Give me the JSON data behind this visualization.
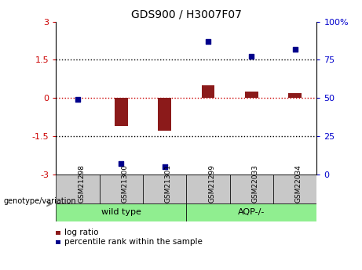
{
  "title": "GDS900 / H3007F07",
  "samples": [
    "GSM21298",
    "GSM21300",
    "GSM21301",
    "GSM21299",
    "GSM22033",
    "GSM22034"
  ],
  "log_ratio": [
    0.0,
    -1.1,
    -1.3,
    0.5,
    0.25,
    0.2
  ],
  "percentile_rank": [
    49,
    7,
    5,
    87,
    77,
    82
  ],
  "bar_color": "#8B1A1A",
  "dot_color": "#00008B",
  "ylim_left": [
    -3,
    3
  ],
  "ylim_right": [
    0,
    100
  ],
  "yticks_left": [
    -3,
    -1.5,
    0,
    1.5,
    3
  ],
  "ytick_labels_left": [
    "-3",
    "-1.5",
    "0",
    "1.5",
    "3"
  ],
  "yticks_right": [
    0,
    25,
    50,
    75,
    100
  ],
  "ytick_labels_right": [
    "0",
    "25",
    "50",
    "75",
    "100%"
  ],
  "hline_zero_color": "#CC0000",
  "hline_dotted_color": "#000000",
  "bg_color": "#FFFFFF",
  "label_log_ratio": "log ratio",
  "label_percentile": "percentile rank within the sample",
  "group_label": "genotype/variation",
  "group1_label": "wild type",
  "group2_label": "AQP-/-",
  "group1_color": "#90EE90",
  "group2_color": "#90EE90",
  "sample_box_color": "#C8C8C8",
  "left_axis_color": "#CC0000",
  "right_axis_color": "#0000CC"
}
